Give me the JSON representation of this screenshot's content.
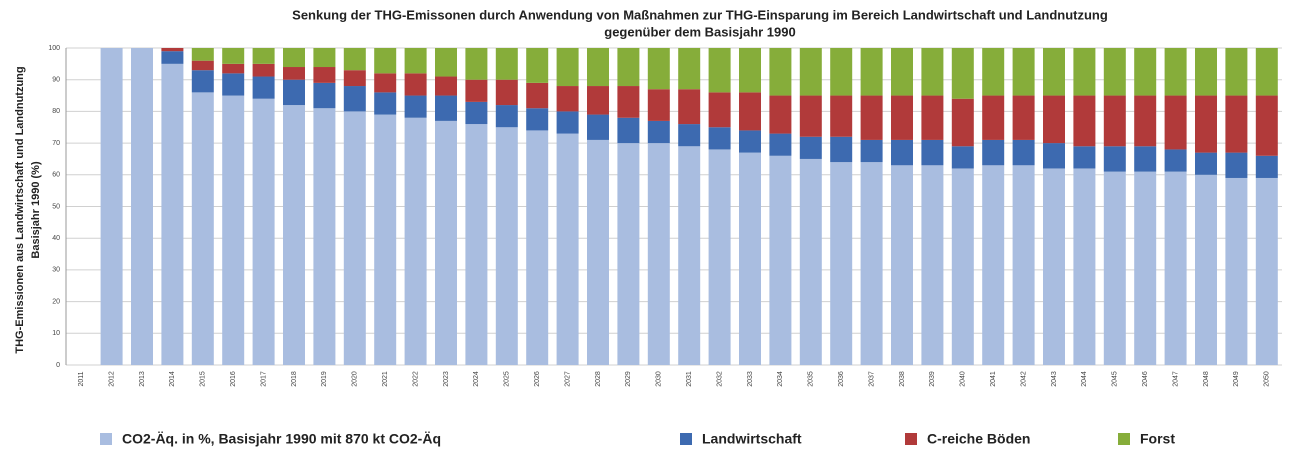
{
  "chart_data": {
    "type": "stacked-bar",
    "title": [
      "Senkung der THG-Emissonen durch Anwendung von Maßnahmen zur THG-Einsparung im Bereich Landwirtschaft und Landnutzung",
      "gegenüber dem Basisjahr 1990"
    ],
    "y_label": [
      "THG-Emissionen aus Landwirtschaft und Landnutzung",
      "Basisjahr 1990 (%)"
    ],
    "categories": [
      "2011",
      "2012",
      "2013",
      "2014",
      "2015",
      "2016",
      "2017",
      "2018",
      "2019",
      "2020",
      "2021",
      "2022",
      "2023",
      "2024",
      "2025",
      "2026",
      "2027",
      "2028",
      "2029",
      "2030",
      "2031",
      "2032",
      "2033",
      "2034",
      "2035",
      "2036",
      "2037",
      "2038",
      "2039",
      "2040",
      "2041",
      "2042",
      "2043",
      "2044",
      "2045",
      "2046",
      "2047",
      "2048",
      "2049",
      "2050"
    ],
    "series": [
      {
        "name": "CO2-Äq. in %, Basisjahr 1990 mit 870 kt CO2-Äq",
        "color": "#a9bde0",
        "values": [
          null,
          100,
          100,
          95,
          86,
          85,
          84,
          82,
          81,
          80,
          79,
          78,
          77,
          76,
          75,
          74,
          73,
          71,
          70,
          70,
          69,
          68,
          67,
          66,
          65,
          64,
          64,
          63,
          63,
          62,
          63,
          63,
          62,
          62,
          61,
          61,
          61,
          60,
          59,
          59
        ]
      },
      {
        "name": "Landwirtschaft",
        "color": "#3d6ab0",
        "values": [
          null,
          0,
          0,
          4,
          7,
          7,
          7,
          8,
          8,
          8,
          7,
          7,
          8,
          7,
          7,
          7,
          7,
          8,
          8,
          7,
          7,
          7,
          7,
          7,
          7,
          8,
          7,
          8,
          8,
          7,
          8,
          8,
          8,
          7,
          8,
          8,
          7,
          7,
          8,
          7
        ]
      },
      {
        "name": "C-reiche Böden",
        "color": "#b13a3a",
        "values": [
          null,
          0,
          0,
          1,
          3,
          3,
          4,
          4,
          5,
          5,
          6,
          7,
          6,
          7,
          8,
          8,
          8,
          9,
          10,
          10,
          11,
          11,
          12,
          12,
          13,
          13,
          14,
          14,
          14,
          15,
          14,
          14,
          15,
          16,
          16,
          16,
          17,
          18,
          18,
          19
        ]
      },
      {
        "name": "Forst",
        "color": "#86ad3a",
        "values": [
          null,
          0,
          0,
          0,
          4,
          5,
          5,
          6,
          6,
          7,
          8,
          8,
          9,
          10,
          10,
          11,
          12,
          12,
          12,
          13,
          13,
          14,
          14,
          15,
          15,
          15,
          15,
          15,
          15,
          16,
          15,
          15,
          15,
          15,
          15,
          15,
          15,
          15,
          15,
          15
        ]
      }
    ],
    "ylim": [
      0,
      100
    ],
    "yticks": [
      0,
      10,
      20,
      30,
      40,
      50,
      60,
      70,
      80,
      90,
      100
    ],
    "grid": true
  }
}
